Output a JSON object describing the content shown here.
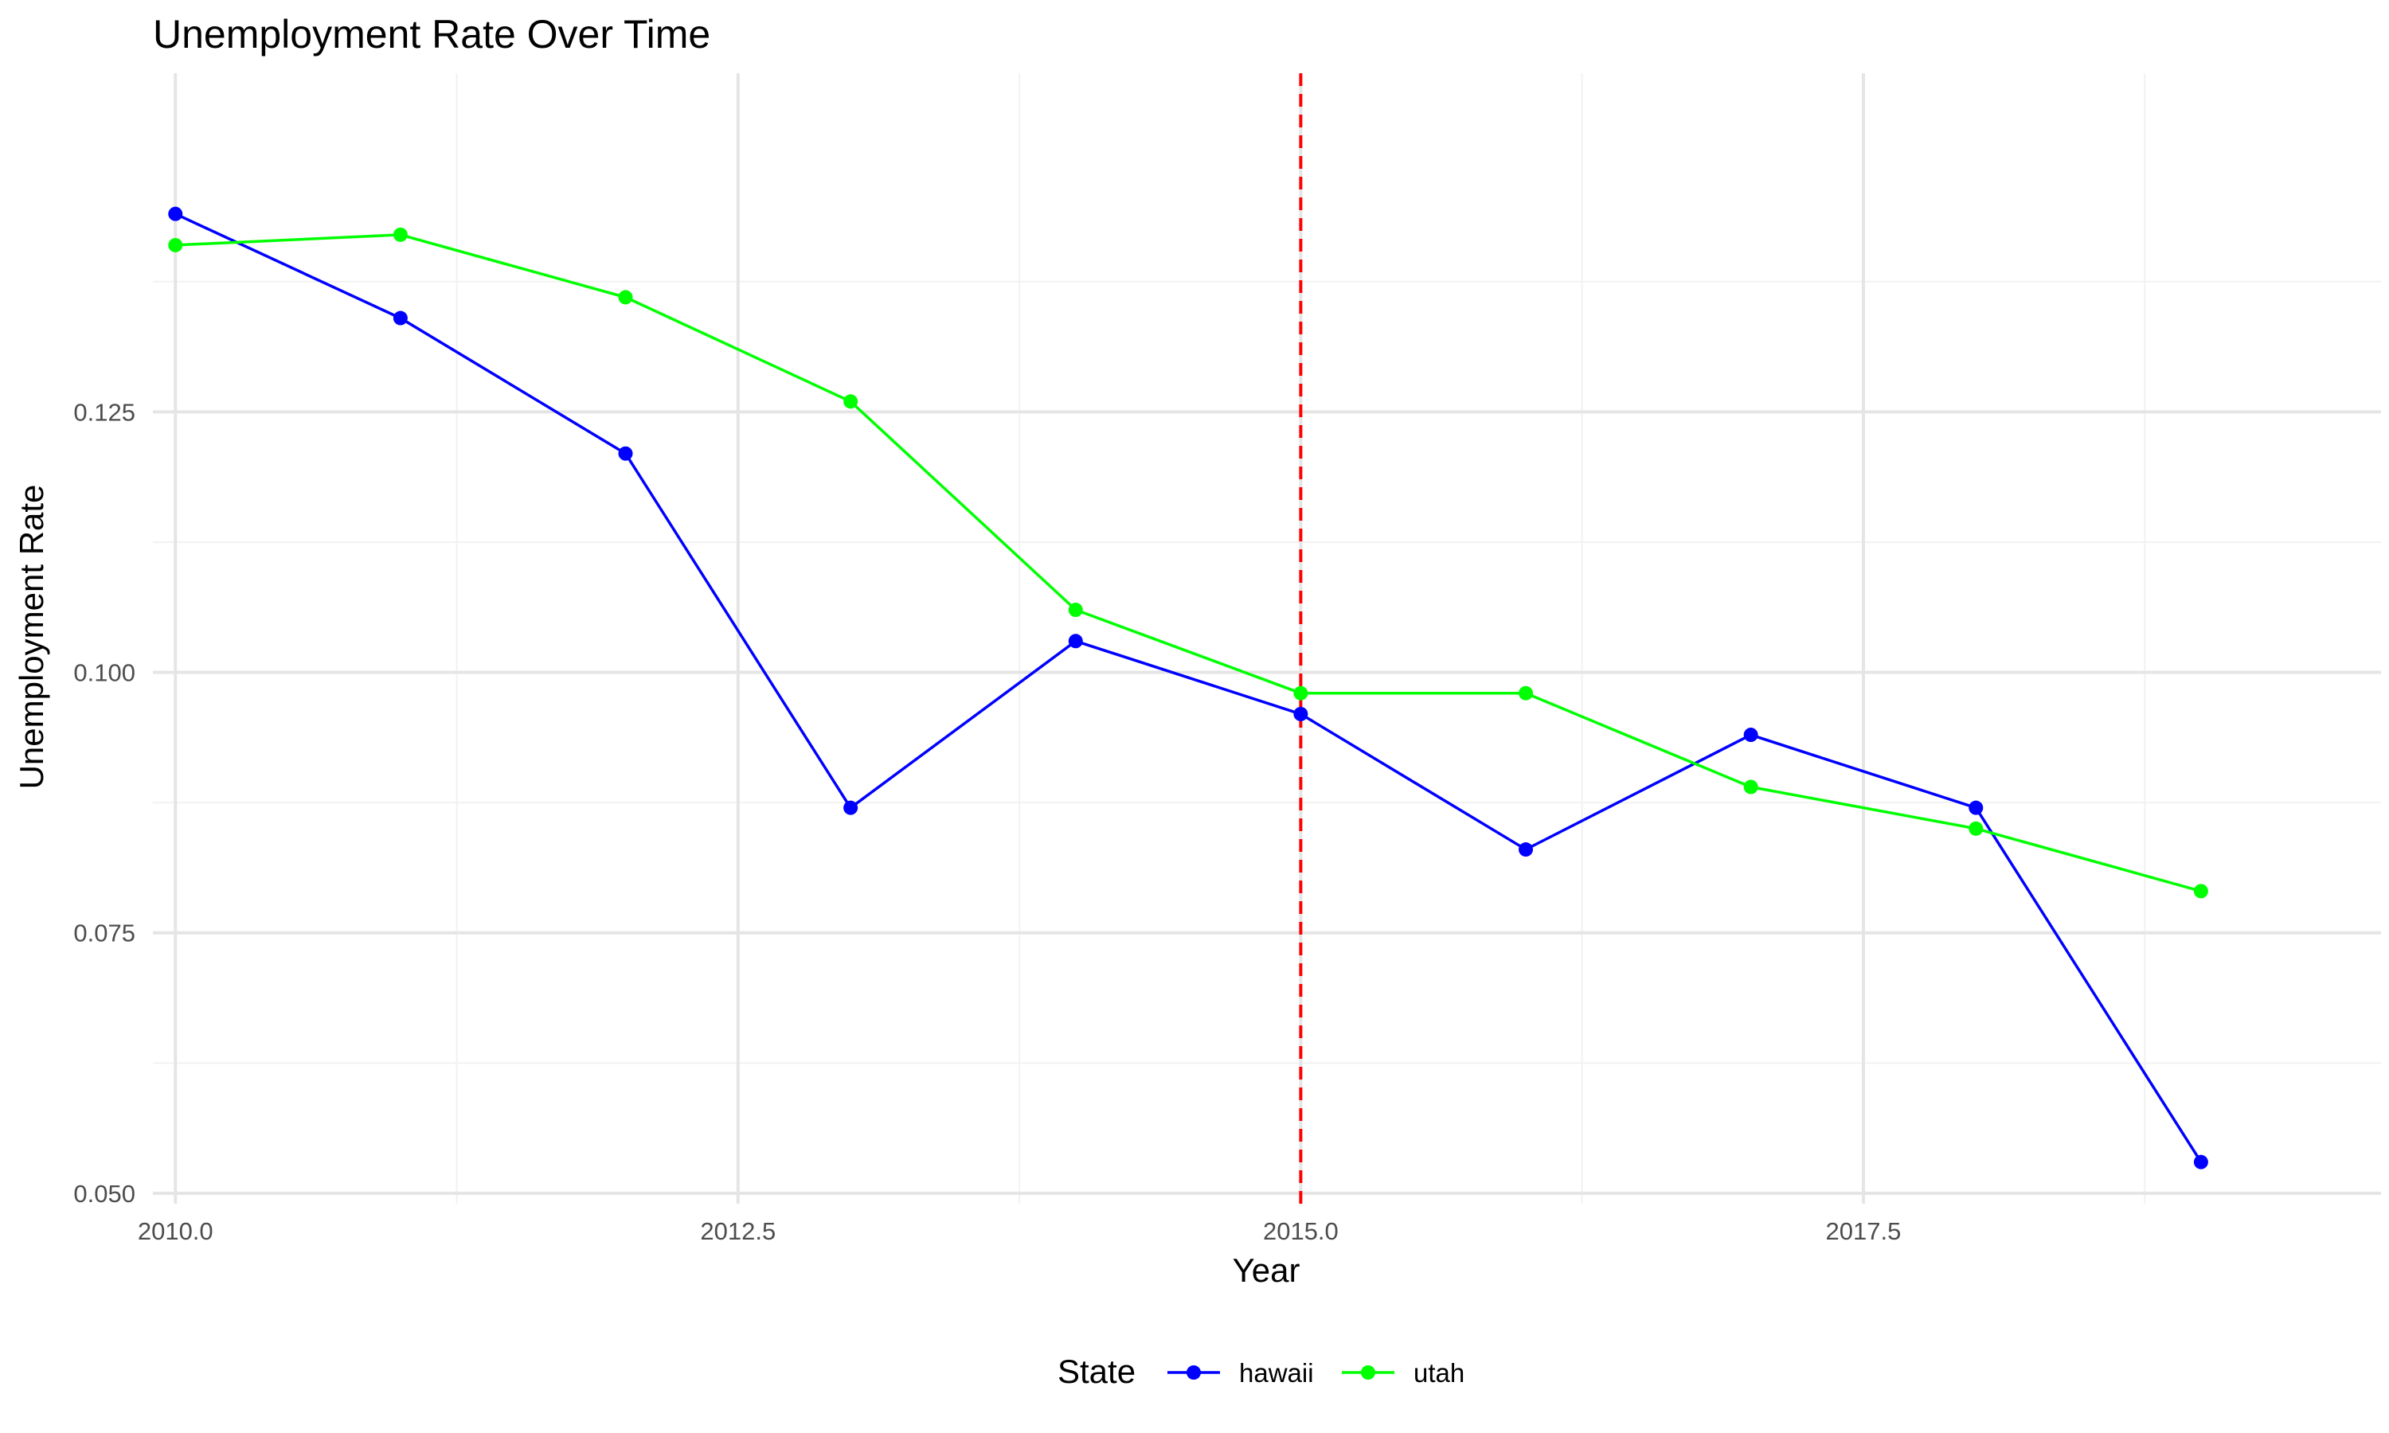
{
  "chart_data": {
    "type": "line",
    "title": "Unemployment Rate Over Time",
    "xlabel": "Year",
    "ylabel": "Unemployment Rate",
    "xlim": [
      2009.9,
      2019.8
    ],
    "ylim": [
      0.049,
      0.1575
    ],
    "x_ticks": [
      2010,
      2012.5,
      2015,
      2017.5
    ],
    "x_tick_labels": [
      "2010.0",
      "2012.5",
      "2015.0",
      "2017.5"
    ],
    "x_minor_ticks": [
      2011.25,
      2013.75,
      2016.25,
      2018.75
    ],
    "y_ticks": [
      0.05,
      0.075,
      0.1,
      0.125
    ],
    "y_tick_labels": [
      "0.050",
      "0.075",
      "0.100",
      "0.125"
    ],
    "y_minor_ticks": [
      0.0625,
      0.0875,
      0.1125,
      0.1375
    ],
    "grid": true,
    "x": [
      2010,
      2011,
      2012,
      2013,
      2014,
      2015,
      2016,
      2017,
      2018,
      2019
    ],
    "series": [
      {
        "name": "hawaii",
        "color": "#0000ff",
        "values": [
          0.144,
          0.134,
          0.121,
          0.087,
          0.103,
          0.096,
          0.083,
          0.094,
          0.087,
          0.053
        ]
      },
      {
        "name": "utah",
        "color": "#00ff00",
        "values": [
          0.141,
          0.142,
          0.136,
          0.126,
          0.106,
          0.098,
          0.098,
          0.089,
          0.085,
          0.079
        ]
      }
    ],
    "annotations": [
      {
        "type": "vline",
        "x": 2015,
        "color": "#ff0000",
        "style": "dashed"
      }
    ],
    "legend": {
      "title": "State",
      "position": "bottom"
    }
  }
}
